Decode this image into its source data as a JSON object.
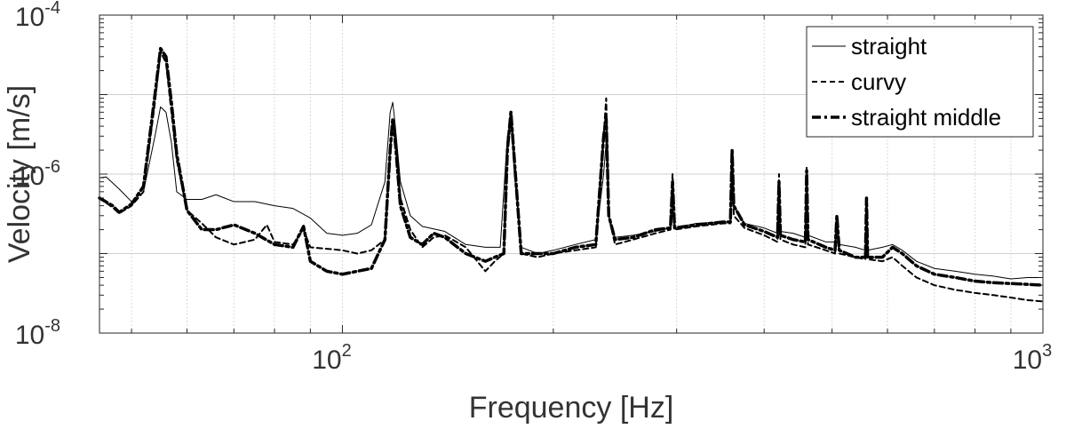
{
  "chart_data": {
    "type": "line",
    "xlabel": "Frequency [Hz]",
    "ylabel": "Velocity [m/s]",
    "xscale": "log",
    "yscale": "log",
    "xlim": [
      45,
      1000
    ],
    "ylim": [
      1e-08,
      0.0001
    ],
    "grid": true,
    "legend_position": "top-right",
    "x_ticks": [
      {
        "value": 100,
        "base": "10",
        "exp": "2"
      },
      {
        "value": 1000,
        "base": "10",
        "exp": "3"
      }
    ],
    "y_ticks": [
      {
        "value": 1e-08,
        "base": "10",
        "exp": "-8"
      },
      {
        "value": 1e-06,
        "base": "10",
        "exp": "-6"
      },
      {
        "value": 0.0001,
        "base": "10",
        "exp": "-4"
      }
    ],
    "series": [
      {
        "name": "straight",
        "style": "thin-solid",
        "points": [
          [
            45,
            9e-07
          ],
          [
            46,
            9.2e-07
          ],
          [
            48,
            6.5e-07
          ],
          [
            50,
            4.5e-07
          ],
          [
            52,
            6e-07
          ],
          [
            54,
            3e-06
          ],
          [
            55,
            7e-06
          ],
          [
            56,
            6e-06
          ],
          [
            57,
            2.5e-06
          ],
          [
            58,
            6e-07
          ],
          [
            60,
            4.8e-07
          ],
          [
            63,
            4.8e-07
          ],
          [
            66,
            5.5e-07
          ],
          [
            70,
            4.5e-07
          ],
          [
            75,
            4.5e-07
          ],
          [
            80,
            4e-07
          ],
          [
            85,
            3.7e-07
          ],
          [
            90,
            2.8e-07
          ],
          [
            95,
            1.8e-07
          ],
          [
            100,
            1.7e-07
          ],
          [
            105,
            1.8e-07
          ],
          [
            110,
            2.3e-07
          ],
          [
            115,
            8e-07
          ],
          [
            117,
            6e-06
          ],
          [
            118,
            8e-06
          ],
          [
            119,
            4e-06
          ],
          [
            121,
            8e-07
          ],
          [
            125,
            3e-07
          ],
          [
            130,
            2.2e-07
          ],
          [
            140,
            1.9e-07
          ],
          [
            150,
            1.3e-07
          ],
          [
            160,
            1.2e-07
          ],
          [
            168,
            1.2e-07
          ],
          [
            172,
            3e-06
          ],
          [
            174,
            5e-06
          ],
          [
            176,
            1e-06
          ],
          [
            180,
            1.2e-07
          ],
          [
            190,
            1e-07
          ],
          [
            200,
            1.1e-07
          ],
          [
            215,
            1.3e-07
          ],
          [
            230,
            1.5e-07
          ],
          [
            236,
            1e-06
          ],
          [
            238,
            2.6e-06
          ],
          [
            240,
            3e-07
          ],
          [
            245,
            1.6e-07
          ],
          [
            260,
            1.7e-07
          ],
          [
            280,
            1.9e-07
          ],
          [
            294,
            2.1e-07
          ],
          [
            296,
            3.8e-07
          ],
          [
            298,
            2.1e-07
          ],
          [
            320,
            2.4e-07
          ],
          [
            350,
            2.5e-07
          ],
          [
            358,
            2.5e-07
          ],
          [
            360,
            1.6e-06
          ],
          [
            362,
            4e-07
          ],
          [
            375,
            2.4e-07
          ],
          [
            400,
            2.1e-07
          ],
          [
            418,
            1.8e-07
          ],
          [
            420,
            8e-07
          ],
          [
            422,
            1.9e-07
          ],
          [
            440,
            1.8e-07
          ],
          [
            458,
            1.6e-07
          ],
          [
            460,
            1.1e-06
          ],
          [
            462,
            1.7e-07
          ],
          [
            490,
            1.4e-07
          ],
          [
            505,
            1.4e-07
          ],
          [
            508,
            2.8e-07
          ],
          [
            512,
            1.3e-07
          ],
          [
            540,
            1.2e-07
          ],
          [
            558,
            1.1e-07
          ],
          [
            560,
            4.5e-07
          ],
          [
            562,
            1.1e-07
          ],
          [
            590,
            1.2e-07
          ],
          [
            610,
            1.3e-07
          ],
          [
            630,
            1.1e-07
          ],
          [
            660,
            8e-08
          ],
          [
            700,
            6.5e-08
          ],
          [
            750,
            6e-08
          ],
          [
            800,
            5.5e-08
          ],
          [
            850,
            5.2e-08
          ],
          [
            900,
            4.8e-08
          ],
          [
            950,
            5e-08
          ],
          [
            1000,
            5e-08
          ]
        ]
      },
      {
        "name": "curvy",
        "style": "dashed",
        "points": [
          [
            45,
            5e-07
          ],
          [
            47,
            3.8e-07
          ],
          [
            48,
            3.2e-07
          ],
          [
            50,
            4e-07
          ],
          [
            52,
            6e-07
          ],
          [
            54,
            8e-06
          ],
          [
            55,
            3.5e-05
          ],
          [
            56,
            2.5e-05
          ],
          [
            57,
            6e-06
          ],
          [
            58,
            1.5e-06
          ],
          [
            60,
            3.5e-07
          ],
          [
            63,
            2.4e-07
          ],
          [
            66,
            1.6e-07
          ],
          [
            70,
            1.3e-07
          ],
          [
            75,
            1.5e-07
          ],
          [
            78,
            2.3e-07
          ],
          [
            80,
            1.4e-07
          ],
          [
            85,
            1.3e-07
          ],
          [
            88,
            2e-07
          ],
          [
            90,
            1.2e-07
          ],
          [
            95,
            1.15e-07
          ],
          [
            100,
            1.1e-07
          ],
          [
            105,
            1e-07
          ],
          [
            110,
            1.1e-07
          ],
          [
            115,
            1.5e-07
          ],
          [
            117,
            2e-06
          ],
          [
            118,
            5e-06
          ],
          [
            119,
            3e-06
          ],
          [
            121,
            5e-07
          ],
          [
            125,
            2e-07
          ],
          [
            130,
            1.2e-07
          ],
          [
            135,
            1.6e-07
          ],
          [
            140,
            1.7e-07
          ],
          [
            150,
            1.2e-07
          ],
          [
            160,
            6e-08
          ],
          [
            165,
            8e-08
          ],
          [
            170,
            1e-07
          ],
          [
            172,
            2e-06
          ],
          [
            174,
            6e-06
          ],
          [
            176,
            1.5e-06
          ],
          [
            180,
            1e-07
          ],
          [
            190,
            9e-08
          ],
          [
            200,
            1e-07
          ],
          [
            215,
            1.1e-07
          ],
          [
            230,
            1.2e-07
          ],
          [
            236,
            3e-06
          ],
          [
            238,
            9e-06
          ],
          [
            240,
            3e-07
          ],
          [
            245,
            1.3e-07
          ],
          [
            260,
            1.5e-07
          ],
          [
            280,
            1.8e-07
          ],
          [
            294,
            2e-07
          ],
          [
            296,
            1e-06
          ],
          [
            298,
            2e-07
          ],
          [
            320,
            2.2e-07
          ],
          [
            350,
            2.4e-07
          ],
          [
            358,
            2.4e-07
          ],
          [
            360,
            2e-06
          ],
          [
            362,
            3e-07
          ],
          [
            375,
            2.1e-07
          ],
          [
            400,
            1.7e-07
          ],
          [
            418,
            1.4e-07
          ],
          [
            420,
            1e-06
          ],
          [
            422,
            1.5e-07
          ],
          [
            440,
            1.3e-07
          ],
          [
            458,
            1.2e-07
          ],
          [
            460,
            1.2e-06
          ],
          [
            462,
            1.3e-07
          ],
          [
            490,
            1.1e-07
          ],
          [
            505,
            1e-07
          ],
          [
            508,
            3e-07
          ],
          [
            512,
            1e-07
          ],
          [
            540,
            9e-08
          ],
          [
            558,
            8.5e-08
          ],
          [
            560,
            5e-07
          ],
          [
            562,
            8.5e-08
          ],
          [
            590,
            8e-08
          ],
          [
            610,
            9e-08
          ],
          [
            630,
            7e-08
          ],
          [
            660,
            5e-08
          ],
          [
            700,
            4e-08
          ],
          [
            750,
            3.5e-08
          ],
          [
            800,
            3.2e-08
          ],
          [
            850,
            3e-08
          ],
          [
            900,
            2.8e-08
          ],
          [
            950,
            2.6e-08
          ],
          [
            1000,
            2.5e-08
          ]
        ]
      },
      {
        "name": "straight middle",
        "style": "thick-dashdot",
        "points": [
          [
            45,
            5e-07
          ],
          [
            47,
            4e-07
          ],
          [
            48,
            3.3e-07
          ],
          [
            50,
            4.2e-07
          ],
          [
            52,
            7e-07
          ],
          [
            54,
            1e-05
          ],
          [
            55,
            3.8e-05
          ],
          [
            56,
            3e-05
          ],
          [
            57,
            8e-06
          ],
          [
            58,
            1.8e-06
          ],
          [
            60,
            3.5e-07
          ],
          [
            63,
            2e-07
          ],
          [
            66,
            2e-07
          ],
          [
            70,
            2.3e-07
          ],
          [
            75,
            1.8e-07
          ],
          [
            80,
            1.3e-07
          ],
          [
            85,
            1.2e-07
          ],
          [
            88,
            2.2e-07
          ],
          [
            90,
            8e-08
          ],
          [
            95,
            6e-08
          ],
          [
            100,
            5.5e-08
          ],
          [
            105,
            6e-08
          ],
          [
            110,
            6.5e-08
          ],
          [
            115,
            1.5e-07
          ],
          [
            117,
            2e-06
          ],
          [
            118,
            5e-06
          ],
          [
            119,
            2.5e-06
          ],
          [
            121,
            4e-07
          ],
          [
            125,
            1.6e-07
          ],
          [
            130,
            1.3e-07
          ],
          [
            135,
            1.8e-07
          ],
          [
            140,
            1.6e-07
          ],
          [
            150,
            1e-07
          ],
          [
            160,
            8e-08
          ],
          [
            165,
            9e-08
          ],
          [
            170,
            1e-07
          ],
          [
            172,
            2e-06
          ],
          [
            174,
            6e-06
          ],
          [
            176,
            1.5e-06
          ],
          [
            180,
            1e-07
          ],
          [
            190,
            1e-07
          ],
          [
            200,
            1e-07
          ],
          [
            215,
            1.2e-07
          ],
          [
            230,
            1.3e-07
          ],
          [
            236,
            3e-06
          ],
          [
            238,
            5e-06
          ],
          [
            240,
            3e-07
          ],
          [
            245,
            1.5e-07
          ],
          [
            260,
            1.6e-07
          ],
          [
            280,
            2e-07
          ],
          [
            294,
            2.1e-07
          ],
          [
            296,
            8e-07
          ],
          [
            298,
            2.1e-07
          ],
          [
            320,
            2.3e-07
          ],
          [
            350,
            2.5e-07
          ],
          [
            358,
            2.5e-07
          ],
          [
            360,
            2e-06
          ],
          [
            362,
            4e-07
          ],
          [
            375,
            2.3e-07
          ],
          [
            400,
            1.9e-07
          ],
          [
            418,
            1.6e-07
          ],
          [
            420,
            8e-07
          ],
          [
            422,
            1.7e-07
          ],
          [
            440,
            1.5e-07
          ],
          [
            458,
            1.4e-07
          ],
          [
            460,
            1.1e-06
          ],
          [
            462,
            1.5e-07
          ],
          [
            490,
            1.2e-07
          ],
          [
            505,
            1.1e-07
          ],
          [
            508,
            3e-07
          ],
          [
            512,
            1.1e-07
          ],
          [
            540,
            9e-08
          ],
          [
            558,
            9e-08
          ],
          [
            560,
            5e-07
          ],
          [
            562,
            9e-08
          ],
          [
            590,
            9e-08
          ],
          [
            610,
            1.2e-07
          ],
          [
            630,
            1e-07
          ],
          [
            660,
            7e-08
          ],
          [
            700,
            5.5e-08
          ],
          [
            750,
            5e-08
          ],
          [
            800,
            4.5e-08
          ],
          [
            850,
            4.3e-08
          ],
          [
            900,
            4.2e-08
          ],
          [
            950,
            4.1e-08
          ],
          [
            1000,
            4e-08
          ]
        ]
      }
    ]
  }
}
